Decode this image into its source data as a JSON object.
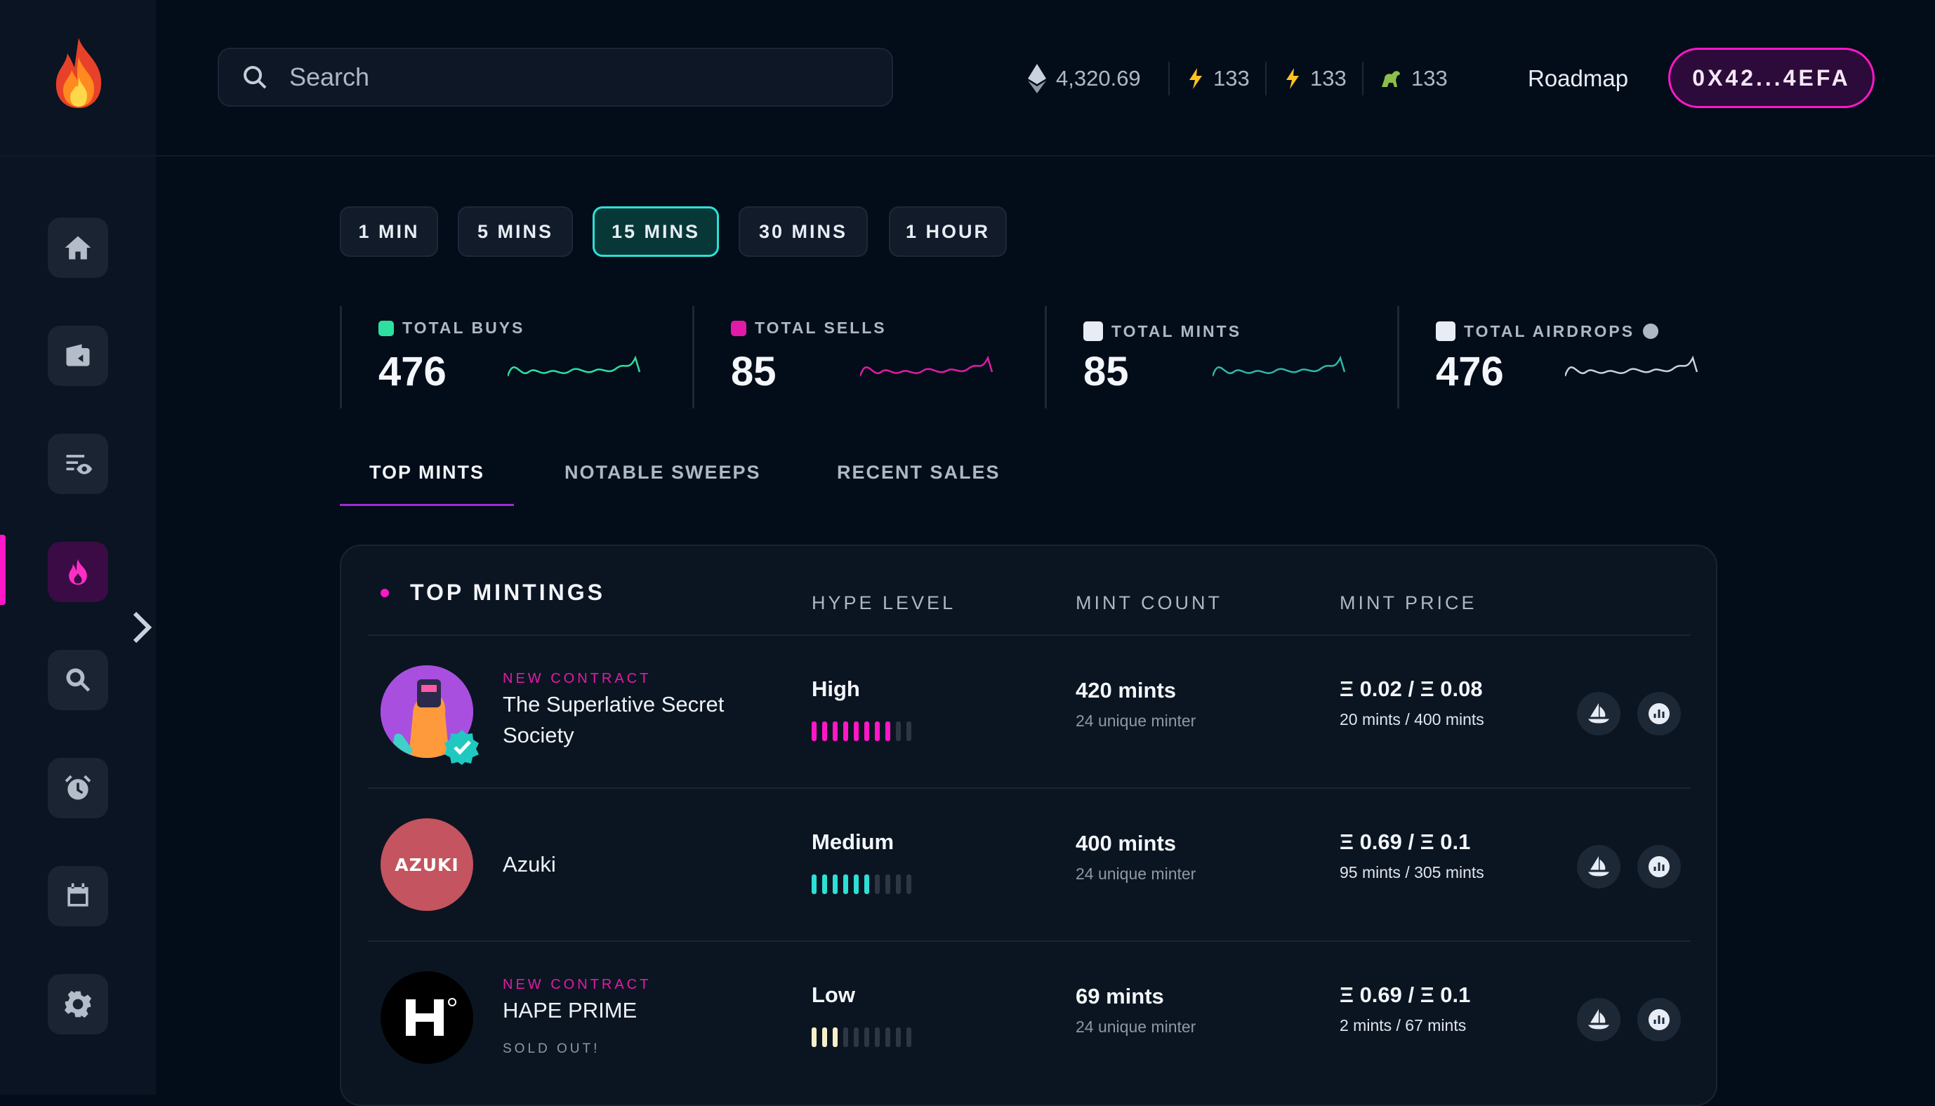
{
  "search": {
    "placeholder": "Search"
  },
  "header_stats": [
    {
      "icon": "ethereum-icon",
      "value": "4,320.69"
    },
    {
      "icon": "lightning-icon",
      "value": "133"
    },
    {
      "icon": "lightning-icon",
      "value": "133"
    },
    {
      "icon": "dinosaur-icon",
      "value": "133"
    }
  ],
  "roadmap_label": "Roadmap",
  "wallet_label": "0X42...4EFA",
  "sidebar": {
    "items": [
      "home",
      "wallet",
      "watchlist",
      "trending",
      "search",
      "alarm",
      "calendar",
      "settings"
    ],
    "active": "trending"
  },
  "timeframes": [
    "1 MIN",
    "5 MINS",
    "15 MINS",
    "30 MINS",
    "1 HOUR"
  ],
  "active_timeframe": "15 MINS",
  "summary": [
    {
      "label": "TOTAL BUYS",
      "value": "476",
      "accent": "#2de0a0"
    },
    {
      "label": "TOTAL SELLS",
      "value": "85",
      "accent": "#e21aa8"
    },
    {
      "label": "TOTAL MINTS",
      "value": "85",
      "accent": "#e8edf5"
    },
    {
      "label": "TOTAL AIRDROPS",
      "value": "476",
      "accent": "#e8edf5"
    }
  ],
  "tabs": [
    "TOP MINTS",
    "NOTABLE SWEEPS",
    "RECENT SALES"
  ],
  "active_tab": "TOP MINTS",
  "table": {
    "title": "TOP MINTINGS",
    "columns": [
      "HYPE LEVEL",
      "MINT COUNT",
      "MINT PRICE"
    ],
    "rows": [
      {
        "tag": "NEW CONTRACT",
        "name": "The Superlative Secret Society",
        "status": "",
        "hype": "High",
        "hype_level": 8,
        "hype_color": "#ff17c8",
        "mint_count": "420 mints",
        "minters": "24 unique minter",
        "price": "Ξ 0.02 / Ξ 0.08",
        "price_sub": "20 mints / 400 mints"
      },
      {
        "tag": "",
        "name": "Azuki",
        "status": "",
        "hype": "Medium",
        "hype_level": 6,
        "hype_color": "#2de0d5",
        "mint_count": "400 mints",
        "minters": "24 unique minter",
        "price": "Ξ 0.69 / Ξ 0.1",
        "price_sub": "95 mints / 305 mints"
      },
      {
        "tag": "NEW CONTRACT",
        "name": "HAPE PRIME",
        "status": "SOLD OUT!",
        "hype": "Low",
        "hype_level": 3,
        "hype_color": "#f6f0c8",
        "mint_count": "69 mints",
        "minters": "24 unique minter",
        "price": "Ξ 0.69 / Ξ 0.1",
        "price_sub": "2 mints / 67 mints"
      }
    ]
  },
  "logos": {
    "azuki": "AZUKI"
  }
}
